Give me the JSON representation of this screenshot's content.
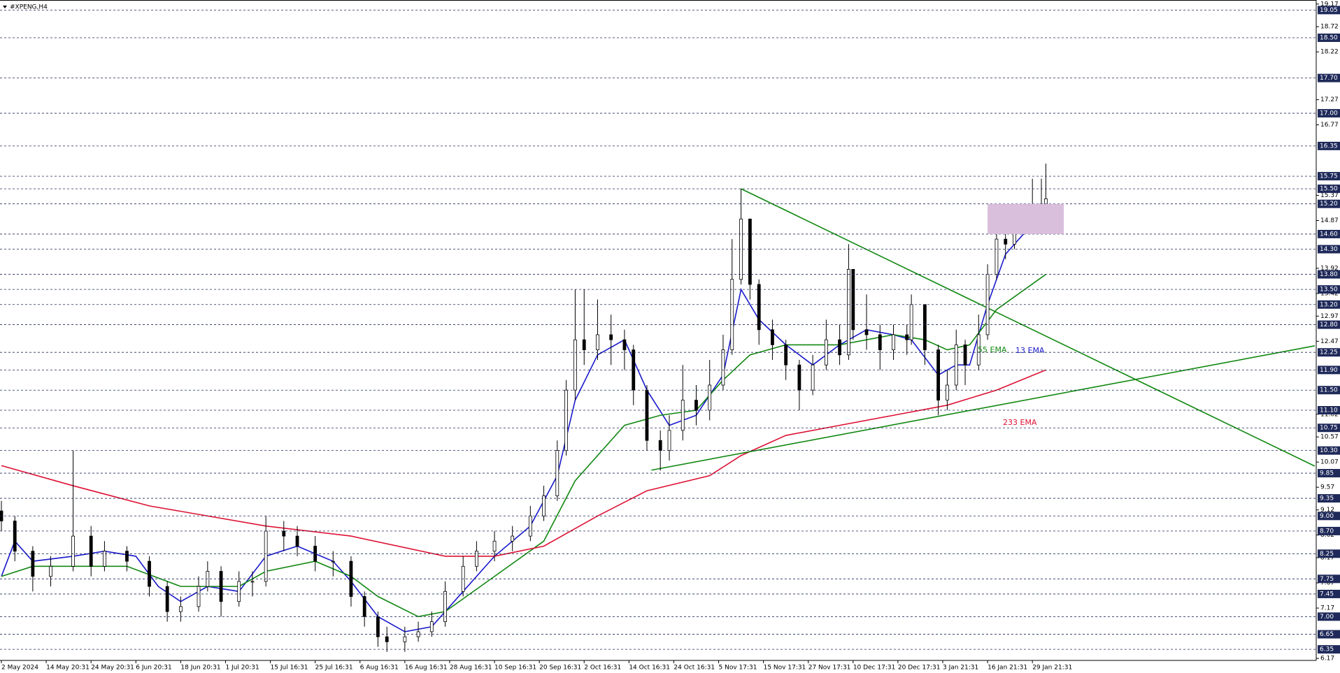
{
  "chart_data": {
    "type": "candlestick",
    "title": "#XPENG,H4",
    "candle_color": "#000000",
    "x": [
      0,
      3,
      7,
      11,
      16,
      20,
      23,
      28,
      33,
      37,
      40,
      44,
      46,
      49,
      53,
      56,
      59,
      63,
      66,
      70,
      74,
      78,
      81,
      84,
      86,
      90,
      93,
      96,
      99,
      103,
      106,
      110,
      114,
      118,
      121,
      124,
      126,
      128,
      130,
      133,
      136,
      139,
      141,
      144,
      147,
      149,
      152,
      155,
      158,
      161,
      163,
      165,
      167,
      169,
      172,
      175,
      178,
      181,
      184,
      187,
      189,
      190,
      193,
      196,
      199,
      202,
      203,
      206,
      209,
      211,
      213,
      215,
      218,
      220,
      222,
      224,
      226,
      228,
      230,
      232,
      233
    ],
    "open": [
      9.1,
      8.9,
      8.3,
      7.8,
      8.0,
      8.6,
      8.0,
      8.3,
      8.1,
      7.6,
      7.1,
      7.2,
      7.6,
      7.9,
      7.3,
      7.7,
      7.7,
      8.7,
      8.6,
      8.4,
      8.1,
      8.1,
      7.4,
      7.0,
      6.6,
      6.5,
      6.6,
      6.7,
      6.9,
      7.5,
      8.0,
      8.3,
      8.5,
      8.6,
      9.0,
      9.4,
      10.3,
      11.5,
      12.5,
      12.3,
      12.6,
      12.5,
      12.3,
      11.5,
      10.5,
      10.3,
      10.7,
      11.3,
      11.1,
      11.6,
      12.3,
      13.7,
      14.9,
      13.6,
      12.7,
      12.4,
      12.0,
      11.5,
      12.0,
      12.5,
      12.2,
      13.9,
      12.7,
      12.6,
      12.3,
      12.6,
      12.5,
      13.2,
      12.3,
      11.3,
      11.6,
      12.4,
      12.0,
      12.6,
      13.8,
      14.5,
      14.4,
      14.8,
      14.9,
      14.9,
      15.2
    ],
    "high": [
      9.3,
      9.0,
      8.4,
      8.2,
      10.3,
      8.8,
      8.5,
      8.4,
      8.2,
      7.7,
      7.4,
      7.8,
      8.1,
      8.0,
      7.9,
      7.9,
      9.0,
      8.9,
      8.8,
      8.6,
      8.3,
      8.2,
      7.5,
      7.1,
      6.8,
      6.8,
      6.9,
      7.1,
      7.7,
      8.2,
      8.5,
      8.7,
      8.8,
      9.2,
      9.6,
      10.5,
      11.7,
      13.5,
      13.5,
      13.3,
      13.0,
      12.7,
      12.4,
      11.6,
      10.7,
      11.0,
      12.0,
      11.6,
      12.1,
      12.6,
      14.5,
      15.5,
      14.9,
      13.7,
      12.9,
      12.5,
      12.1,
      12.2,
      12.9,
      12.8,
      14.4,
      13.9,
      13.4,
      12.8,
      12.8,
      12.8,
      13.4,
      13.2,
      12.4,
      11.9,
      12.7,
      12.5,
      13.0,
      14.0,
      14.9,
      14.8,
      15.1,
      15.2,
      15.7,
      15.7,
      16.0
    ],
    "low": [
      8.7,
      8.1,
      7.5,
      7.6,
      7.9,
      7.8,
      7.9,
      7.9,
      7.4,
      6.9,
      6.9,
      7.1,
      7.5,
      7.0,
      7.2,
      7.4,
      7.6,
      8.3,
      8.2,
      7.9,
      7.8,
      7.2,
      6.8,
      6.4,
      6.3,
      6.3,
      6.5,
      6.6,
      6.8,
      7.4,
      7.9,
      8.1,
      8.3,
      8.5,
      8.9,
      9.3,
      10.2,
      11.3,
      12.0,
      12.1,
      12.0,
      11.9,
      11.2,
      10.3,
      9.9,
      10.1,
      10.5,
      10.8,
      10.9,
      11.5,
      12.2,
      13.6,
      13.3,
      12.4,
      12.1,
      11.7,
      11.1,
      11.4,
      11.9,
      12.0,
      12.1,
      12.5,
      12.3,
      11.9,
      12.1,
      12.2,
      12.4,
      12.0,
      11.0,
      11.1,
      11.5,
      11.6,
      11.9,
      12.5,
      13.7,
      14.1,
      14.3,
      14.6,
      14.6,
      14.9,
      14.9
    ],
    "close": [
      8.9,
      8.3,
      7.8,
      8.0,
      8.6,
      8.0,
      8.3,
      8.1,
      7.6,
      7.1,
      7.2,
      7.6,
      7.9,
      7.3,
      7.7,
      7.7,
      8.7,
      8.6,
      8.4,
      8.1,
      8.1,
      7.4,
      7.0,
      6.6,
      6.5,
      6.6,
      6.7,
      6.9,
      7.5,
      8.0,
      8.3,
      8.5,
      8.6,
      9.0,
      9.4,
      10.3,
      11.5,
      12.5,
      12.3,
      12.6,
      12.5,
      12.3,
      11.5,
      10.5,
      10.3,
      10.7,
      11.3,
      11.1,
      11.6,
      12.3,
      13.7,
      14.9,
      13.6,
      12.7,
      12.4,
      12.0,
      11.5,
      12.0,
      12.5,
      12.2,
      13.9,
      12.7,
      12.6,
      12.3,
      12.6,
      12.5,
      13.2,
      12.3,
      11.3,
      11.6,
      12.4,
      12.0,
      12.6,
      13.8,
      14.5,
      14.4,
      14.8,
      14.9,
      14.9,
      15.2,
      15.3
    ],
    "series": [
      {
        "name": "13 EMA",
        "color": "#1a1acc",
        "x": [
          0,
          3,
          7,
          16,
          23,
          30,
          35,
          40,
          46,
          53,
          59,
          66,
          74,
          78,
          84,
          90,
          96,
          103,
          110,
          118,
          124,
          128,
          133,
          139,
          144,
          149,
          155,
          161,
          165,
          169,
          175,
          181,
          187,
          193,
          199,
          203,
          209,
          213,
          216,
          220,
          224,
          228,
          233
        ],
        "values": [
          7.8,
          8.5,
          8.1,
          8.2,
          8.3,
          8.2,
          7.6,
          7.3,
          7.6,
          7.5,
          8.2,
          8.4,
          8.1,
          7.7,
          7.0,
          6.7,
          6.8,
          7.5,
          8.2,
          8.8,
          9.8,
          11.3,
          12.2,
          12.5,
          11.5,
          10.8,
          11.0,
          11.8,
          13.5,
          12.9,
          12.4,
          12.0,
          12.4,
          12.7,
          12.6,
          12.5,
          11.8,
          12.0,
          12.0,
          13.2,
          14.2,
          14.6,
          15.0
        ]
      },
      {
        "name": "55 EMA",
        "color": "#118811",
        "x": [
          0,
          7,
          16,
          28,
          40,
          53,
          59,
          70,
          78,
          84,
          93,
          99,
          110,
          121,
          128,
          139,
          147,
          155,
          161,
          167,
          175,
          187,
          199,
          206,
          211,
          216,
          222,
          233
        ],
        "values": [
          7.8,
          8.0,
          8.0,
          8.0,
          7.6,
          7.6,
          7.9,
          8.1,
          7.8,
          7.4,
          7.0,
          7.1,
          7.8,
          8.5,
          9.7,
          10.8,
          11.0,
          11.1,
          11.7,
          12.2,
          12.4,
          12.4,
          12.6,
          12.5,
          12.3,
          12.4,
          13.1,
          13.8
        ]
      },
      {
        "name": "233 EMA",
        "color": "#dd1133",
        "x": [
          0,
          16,
          33,
          59,
          78,
          99,
          110,
          121,
          133,
          144,
          158,
          165,
          175,
          187,
          199,
          211,
          222,
          233
        ],
        "values": [
          10.0,
          9.6,
          9.2,
          8.8,
          8.6,
          8.2,
          8.2,
          8.4,
          9.0,
          9.5,
          9.8,
          10.2,
          10.6,
          10.8,
          11.0,
          11.2,
          11.5,
          11.9
        ]
      }
    ],
    "trendlines": [
      {
        "color": "#118811",
        "x": [
          165,
          293
        ],
        "values": [
          15.5,
          9.99
        ]
      },
      {
        "color": "#118811",
        "x": [
          145,
          293
        ],
        "values": [
          9.91,
          12.38
        ]
      }
    ],
    "zone": {
      "color": "#d9bfdc",
      "x": [
        220,
        237
      ],
      "y": [
        14.6,
        15.2
      ]
    },
    "xlim": [
      0,
      293
    ],
    "xticks": [
      {
        "value": 0,
        "label": "2 May 2024"
      },
      {
        "value": 10,
        "label": "14 May 20:31"
      },
      {
        "value": 20,
        "label": "24 May 20:31"
      },
      {
        "value": 30,
        "label": "6 Jun 20:31"
      },
      {
        "value": 40,
        "label": "18 Jun 20:31"
      },
      {
        "value": 50,
        "label": "1 Jul 20:31"
      },
      {
        "value": 60,
        "label": "15 Jul 16:31"
      },
      {
        "value": 70,
        "label": "25 Jul 16:31"
      },
      {
        "value": 80,
        "label": "6 Aug 16:31"
      },
      {
        "value": 90,
        "label": "16 Aug 16:31"
      },
      {
        "value": 100,
        "label": "28 Aug 16:31"
      },
      {
        "value": 110,
        "label": "10 Sep 16:31"
      },
      {
        "value": 120,
        "label": "20 Sep 16:31"
      },
      {
        "value": 130,
        "label": "2 Oct 16:31"
      },
      {
        "value": 140,
        "label": "14 Oct 16:31"
      },
      {
        "value": 150,
        "label": "24 Oct 16:31"
      },
      {
        "value": 160,
        "label": "5 Nov 17:31"
      },
      {
        "value": 170,
        "label": "15 Nov 17:31"
      },
      {
        "value": 180,
        "label": "27 Nov 17:31"
      },
      {
        "value": 190,
        "label": "10 Dec 17:31"
      },
      {
        "value": 200,
        "label": "20 Dec 17:31"
      },
      {
        "value": 210,
        "label": "3 Jan 21:31"
      },
      {
        "value": 220,
        "label": "16 Jan 21:31"
      },
      {
        "value": 230,
        "label": "29 Jan 21:31"
      }
    ],
    "ylim": [
      6.13,
      19.25
    ],
    "yticks": [
      19.17,
      18.72,
      18.22,
      17.27,
      16.77,
      15.37,
      14.87,
      13.92,
      13.42,
      12.97,
      12.47,
      11.02,
      10.57,
      10.07,
      9.57,
      9.12,
      8.62,
      8.17,
      7.67,
      7.17,
      6.17
    ],
    "levels": [
      19.05,
      {
        "value": 18.5,
        "label": "18.50"
      },
      {
        "value": 17.7,
        "label": "17.70"
      },
      {
        "value": 17,
        "label": "17.00"
      },
      16.35,
      15.75,
      {
        "value": 15.5,
        "label": "15.50"
      },
      {
        "value": 15.2,
        "label": "15.20"
      },
      {
        "value": 14.6,
        "label": "14.60"
      },
      {
        "value": 14.3,
        "label": "14.30"
      },
      {
        "value": 13.8,
        "label": "13.80"
      },
      {
        "value": 13.5,
        "label": "13.50"
      },
      {
        "value": 13.2,
        "label": "13.20"
      },
      {
        "value": 12.8,
        "label": "12.80"
      },
      12.25,
      {
        "value": 11.9,
        "label": "11.90"
      },
      {
        "value": 11.5,
        "label": "11.50"
      },
      {
        "value": 11.1,
        "label": "11.10"
      },
      10.75,
      {
        "value": 10.3,
        "label": "10.30"
      },
      9.85,
      9.35,
      {
        "value": 9,
        "label": "9.00"
      },
      {
        "value": 8.7,
        "label": "8.70"
      },
      8.25,
      7.75,
      7.45,
      {
        "value": 7,
        "label": "7.00"
      },
      6.65,
      6.35
    ]
  }
}
